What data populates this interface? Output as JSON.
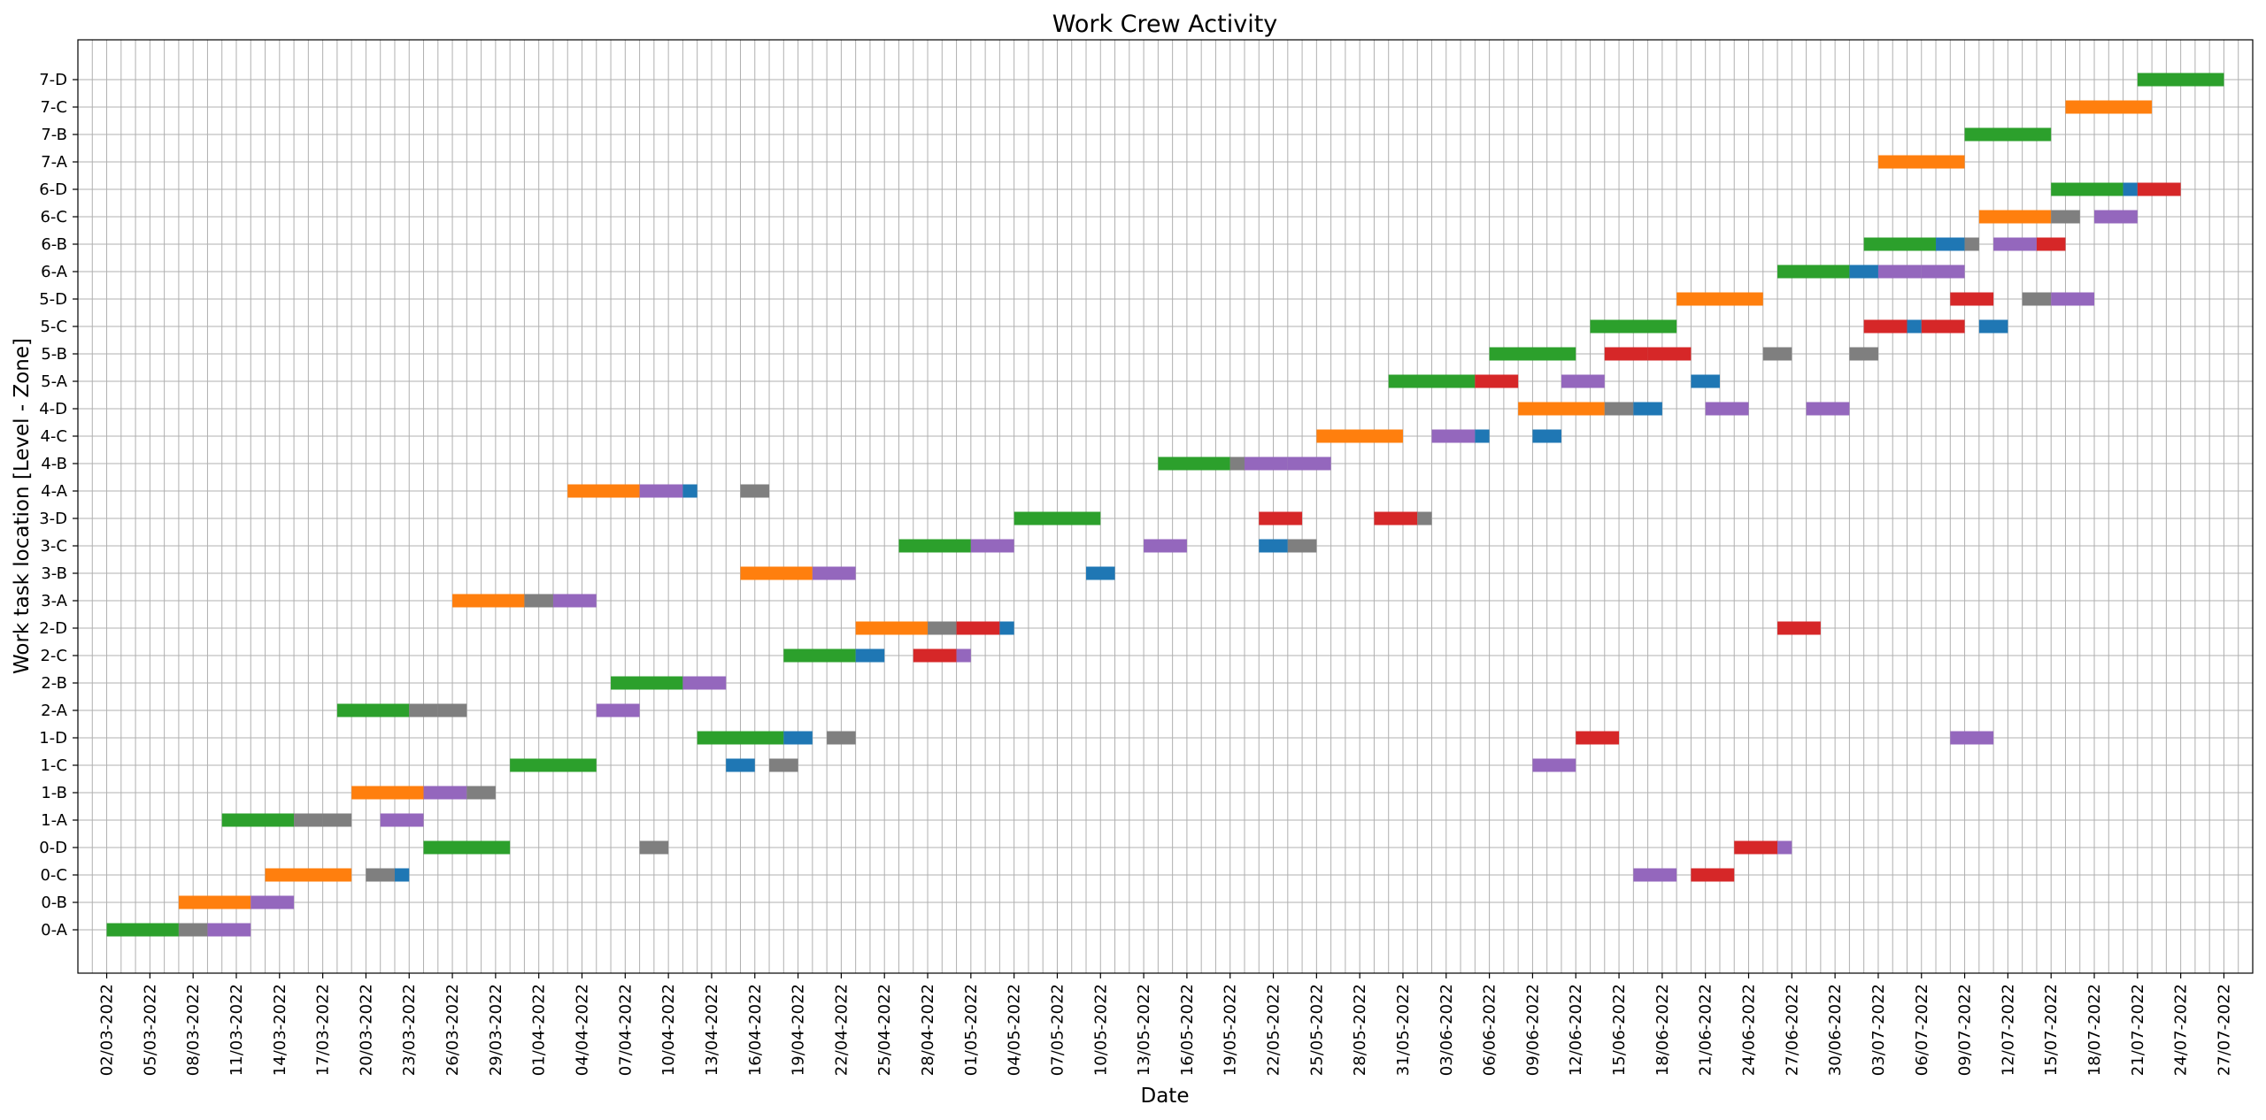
{
  "chart_data": {
    "type": "gantt",
    "title": "Work Crew Activity",
    "xlabel": "Date",
    "ylabel": "Work task location [Level - Zone]",
    "grid": true,
    "x_start": "2022-02-28",
    "x_end": "2022-07-29",
    "x_ticks": [
      "02/03-2022",
      "05/03-2022",
      "08/03-2022",
      "11/03-2022",
      "14/03-2022",
      "17/03-2022",
      "20/03-2022",
      "23/03-2022",
      "26/03-2022",
      "29/03-2022",
      "01/04-2022",
      "04/04-2022",
      "07/04-2022",
      "10/04-2022",
      "13/04-2022",
      "16/04-2022",
      "19/04-2022",
      "22/04-2022",
      "25/04-2022",
      "28/04-2022",
      "01/05-2022",
      "04/05-2022",
      "07/05-2022",
      "10/05-2022",
      "13/05-2022",
      "16/05-2022",
      "19/05-2022",
      "22/05-2022",
      "25/05-2022",
      "28/05-2022",
      "31/05-2022",
      "03/06-2022",
      "06/06-2022",
      "09/06-2022",
      "12/06-2022",
      "15/06-2022",
      "18/06-2022",
      "21/06-2022",
      "24/06-2022",
      "27/06-2022",
      "30/06-2022",
      "03/07-2022",
      "06/07-2022",
      "09/07-2022",
      "12/07-2022",
      "15/07-2022",
      "18/07-2022",
      "21/07-2022",
      "24/07-2022",
      "27/07-2022"
    ],
    "categories": [
      "0-A",
      "0-B",
      "0-C",
      "0-D",
      "1-A",
      "1-B",
      "1-C",
      "1-D",
      "2-A",
      "2-B",
      "2-C",
      "2-D",
      "3-A",
      "3-B",
      "3-C",
      "3-D",
      "4-A",
      "4-B",
      "4-C",
      "4-D",
      "5-A",
      "5-B",
      "5-C",
      "5-D",
      "6-A",
      "6-B",
      "6-C",
      "6-D",
      "7-A",
      "7-B",
      "7-C",
      "7-D"
    ],
    "colors": {
      "green": "#2ca02c",
      "orange": "#ff7f0e",
      "gray": "#7f7f7f",
      "purple": "#9467bd",
      "blue": "#1f77b4",
      "red": "#d62728"
    },
    "tasks": [
      {
        "loc": "0-A",
        "start": "2022-03-02",
        "end": "2022-03-07",
        "color": "green"
      },
      {
        "loc": "0-A",
        "start": "2022-03-07",
        "end": "2022-03-09",
        "color": "gray"
      },
      {
        "loc": "0-A",
        "start": "2022-03-09",
        "end": "2022-03-12",
        "color": "purple"
      },
      {
        "loc": "0-B",
        "start": "2022-03-07",
        "end": "2022-03-12",
        "color": "orange"
      },
      {
        "loc": "0-B",
        "start": "2022-03-12",
        "end": "2022-03-15",
        "color": "purple"
      },
      {
        "loc": "0-C",
        "start": "2022-03-13",
        "end": "2022-03-19",
        "color": "orange"
      },
      {
        "loc": "0-C",
        "start": "2022-03-20",
        "end": "2022-03-22",
        "color": "gray"
      },
      {
        "loc": "0-C",
        "start": "2022-03-22",
        "end": "2022-03-23",
        "color": "blue"
      },
      {
        "loc": "0-D",
        "start": "2022-03-24",
        "end": "2022-03-30",
        "color": "green"
      },
      {
        "loc": "0-D",
        "start": "2022-04-08",
        "end": "2022-04-10",
        "color": "gray"
      },
      {
        "loc": "0-D",
        "start": "2022-06-23",
        "end": "2022-06-26",
        "color": "red"
      },
      {
        "loc": "0-D",
        "start": "2022-06-26",
        "end": "2022-06-27",
        "color": "purple"
      },
      {
        "loc": "0-C",
        "start": "2022-06-16",
        "end": "2022-06-19",
        "color": "purple"
      },
      {
        "loc": "0-C",
        "start": "2022-06-20",
        "end": "2022-06-23",
        "color": "red"
      },
      {
        "loc": "1-A",
        "start": "2022-03-10",
        "end": "2022-03-15",
        "color": "green"
      },
      {
        "loc": "1-A",
        "start": "2022-03-15",
        "end": "2022-03-17",
        "color": "gray"
      },
      {
        "loc": "1-A",
        "start": "2022-03-17",
        "end": "2022-03-19",
        "color": "gray"
      },
      {
        "loc": "1-A",
        "start": "2022-03-21",
        "end": "2022-03-24",
        "color": "purple"
      },
      {
        "loc": "1-B",
        "start": "2022-03-19",
        "end": "2022-03-24",
        "color": "orange"
      },
      {
        "loc": "1-B",
        "start": "2022-03-24",
        "end": "2022-03-27",
        "color": "purple"
      },
      {
        "loc": "1-B",
        "start": "2022-03-27",
        "end": "2022-03-29",
        "color": "gray"
      },
      {
        "loc": "1-C",
        "start": "2022-03-30",
        "end": "2022-04-05",
        "color": "green"
      },
      {
        "loc": "1-C",
        "start": "2022-04-14",
        "end": "2022-04-16",
        "color": "blue"
      },
      {
        "loc": "1-C",
        "start": "2022-04-17",
        "end": "2022-04-19",
        "color": "gray"
      },
      {
        "loc": "1-C",
        "start": "2022-06-09",
        "end": "2022-06-12",
        "color": "purple"
      },
      {
        "loc": "1-D",
        "start": "2022-04-12",
        "end": "2022-04-18",
        "color": "green"
      },
      {
        "loc": "1-D",
        "start": "2022-04-18",
        "end": "2022-04-20",
        "color": "blue"
      },
      {
        "loc": "1-D",
        "start": "2022-04-21",
        "end": "2022-04-23",
        "color": "gray"
      },
      {
        "loc": "1-D",
        "start": "2022-06-12",
        "end": "2022-06-15",
        "color": "red"
      },
      {
        "loc": "1-D",
        "start": "2022-07-08",
        "end": "2022-07-11",
        "color": "purple"
      },
      {
        "loc": "2-A",
        "start": "2022-03-18",
        "end": "2022-03-23",
        "color": "green"
      },
      {
        "loc": "2-A",
        "start": "2022-03-23",
        "end": "2022-03-25",
        "color": "gray"
      },
      {
        "loc": "2-A",
        "start": "2022-03-25",
        "end": "2022-03-27",
        "color": "gray"
      },
      {
        "loc": "2-A",
        "start": "2022-04-05",
        "end": "2022-04-08",
        "color": "purple"
      },
      {
        "loc": "2-B",
        "start": "2022-04-06",
        "end": "2022-04-11",
        "color": "green"
      },
      {
        "loc": "2-B",
        "start": "2022-04-11",
        "end": "2022-04-14",
        "color": "purple"
      },
      {
        "loc": "2-C",
        "start": "2022-04-18",
        "end": "2022-04-23",
        "color": "green"
      },
      {
        "loc": "2-C",
        "start": "2022-04-23",
        "end": "2022-04-25",
        "color": "blue"
      },
      {
        "loc": "2-C",
        "start": "2022-04-27",
        "end": "2022-04-30",
        "color": "red"
      },
      {
        "loc": "2-C",
        "start": "2022-04-30",
        "end": "2022-05-01",
        "color": "purple"
      },
      {
        "loc": "2-D",
        "start": "2022-04-23",
        "end": "2022-04-28",
        "color": "orange"
      },
      {
        "loc": "2-D",
        "start": "2022-04-28",
        "end": "2022-04-30",
        "color": "gray"
      },
      {
        "loc": "2-D",
        "start": "2022-04-30",
        "end": "2022-05-03",
        "color": "red"
      },
      {
        "loc": "2-D",
        "start": "2022-05-03",
        "end": "2022-05-04",
        "color": "blue"
      },
      {
        "loc": "2-D",
        "start": "2022-06-26",
        "end": "2022-06-29",
        "color": "red"
      },
      {
        "loc": "3-A",
        "start": "2022-03-26",
        "end": "2022-03-31",
        "color": "orange"
      },
      {
        "loc": "3-A",
        "start": "2022-03-31",
        "end": "2022-04-02",
        "color": "gray"
      },
      {
        "loc": "3-A",
        "start": "2022-04-02",
        "end": "2022-04-05",
        "color": "purple"
      },
      {
        "loc": "3-B",
        "start": "2022-04-15",
        "end": "2022-04-20",
        "color": "orange"
      },
      {
        "loc": "3-B",
        "start": "2022-04-20",
        "end": "2022-04-23",
        "color": "purple"
      },
      {
        "loc": "3-B",
        "start": "2022-05-09",
        "end": "2022-05-11",
        "color": "blue"
      },
      {
        "loc": "3-C",
        "start": "2022-04-26",
        "end": "2022-05-01",
        "color": "green"
      },
      {
        "loc": "3-C",
        "start": "2022-05-01",
        "end": "2022-05-04",
        "color": "purple"
      },
      {
        "loc": "3-C",
        "start": "2022-05-13",
        "end": "2022-05-16",
        "color": "purple"
      },
      {
        "loc": "3-C",
        "start": "2022-05-21",
        "end": "2022-05-23",
        "color": "blue"
      },
      {
        "loc": "3-C",
        "start": "2022-05-23",
        "end": "2022-05-25",
        "color": "gray"
      },
      {
        "loc": "3-D",
        "start": "2022-05-04",
        "end": "2022-05-10",
        "color": "green"
      },
      {
        "loc": "3-D",
        "start": "2022-05-21",
        "end": "2022-05-24",
        "color": "red"
      },
      {
        "loc": "3-D",
        "start": "2022-05-29",
        "end": "2022-06-01",
        "color": "red"
      },
      {
        "loc": "3-D",
        "start": "2022-06-01",
        "end": "2022-06-02",
        "color": "gray"
      },
      {
        "loc": "4-A",
        "start": "2022-04-03",
        "end": "2022-04-08",
        "color": "orange"
      },
      {
        "loc": "4-A",
        "start": "2022-04-08",
        "end": "2022-04-11",
        "color": "purple"
      },
      {
        "loc": "4-A",
        "start": "2022-04-11",
        "end": "2022-04-12",
        "color": "blue"
      },
      {
        "loc": "4-A",
        "start": "2022-04-15",
        "end": "2022-04-17",
        "color": "gray"
      },
      {
        "loc": "4-B",
        "start": "2022-05-14",
        "end": "2022-05-19",
        "color": "green"
      },
      {
        "loc": "4-B",
        "start": "2022-05-19",
        "end": "2022-05-20",
        "color": "gray"
      },
      {
        "loc": "4-B",
        "start": "2022-05-20",
        "end": "2022-05-23",
        "color": "purple"
      },
      {
        "loc": "4-B",
        "start": "2022-05-23",
        "end": "2022-05-26",
        "color": "purple"
      },
      {
        "loc": "4-C",
        "start": "2022-05-25",
        "end": "2022-05-31",
        "color": "orange"
      },
      {
        "loc": "4-C",
        "start": "2022-06-02",
        "end": "2022-06-05",
        "color": "purple"
      },
      {
        "loc": "4-C",
        "start": "2022-06-05",
        "end": "2022-06-06",
        "color": "blue"
      },
      {
        "loc": "4-C",
        "start": "2022-06-09",
        "end": "2022-06-11",
        "color": "blue"
      },
      {
        "loc": "4-D",
        "start": "2022-06-08",
        "end": "2022-06-14",
        "color": "orange"
      },
      {
        "loc": "4-D",
        "start": "2022-06-14",
        "end": "2022-06-16",
        "color": "gray"
      },
      {
        "loc": "4-D",
        "start": "2022-06-16",
        "end": "2022-06-18",
        "color": "blue"
      },
      {
        "loc": "4-D",
        "start": "2022-06-21",
        "end": "2022-06-24",
        "color": "purple"
      },
      {
        "loc": "4-D",
        "start": "2022-06-28",
        "end": "2022-07-01",
        "color": "purple"
      },
      {
        "loc": "5-A",
        "start": "2022-05-30",
        "end": "2022-06-05",
        "color": "green"
      },
      {
        "loc": "5-A",
        "start": "2022-06-05",
        "end": "2022-06-08",
        "color": "red"
      },
      {
        "loc": "5-A",
        "start": "2022-06-11",
        "end": "2022-06-14",
        "color": "purple"
      },
      {
        "loc": "5-A",
        "start": "2022-06-20",
        "end": "2022-06-22",
        "color": "blue"
      },
      {
        "loc": "5-B",
        "start": "2022-06-06",
        "end": "2022-06-12",
        "color": "green"
      },
      {
        "loc": "5-B",
        "start": "2022-06-14",
        "end": "2022-06-17",
        "color": "red"
      },
      {
        "loc": "5-B",
        "start": "2022-06-17",
        "end": "2022-06-20",
        "color": "red"
      },
      {
        "loc": "5-B",
        "start": "2022-06-25",
        "end": "2022-06-27",
        "color": "gray"
      },
      {
        "loc": "5-B",
        "start": "2022-07-01",
        "end": "2022-07-03",
        "color": "gray"
      },
      {
        "loc": "5-C",
        "start": "2022-06-13",
        "end": "2022-06-19",
        "color": "green"
      },
      {
        "loc": "5-C",
        "start": "2022-07-02",
        "end": "2022-07-05",
        "color": "red"
      },
      {
        "loc": "5-C",
        "start": "2022-07-05",
        "end": "2022-07-06",
        "color": "blue"
      },
      {
        "loc": "5-C",
        "start": "2022-07-06",
        "end": "2022-07-09",
        "color": "red"
      },
      {
        "loc": "5-C",
        "start": "2022-07-10",
        "end": "2022-07-12",
        "color": "blue"
      },
      {
        "loc": "5-D",
        "start": "2022-06-19",
        "end": "2022-06-25",
        "color": "orange"
      },
      {
        "loc": "5-D",
        "start": "2022-07-08",
        "end": "2022-07-11",
        "color": "red"
      },
      {
        "loc": "5-D",
        "start": "2022-07-13",
        "end": "2022-07-15",
        "color": "gray"
      },
      {
        "loc": "5-D",
        "start": "2022-07-15",
        "end": "2022-07-18",
        "color": "purple"
      },
      {
        "loc": "6-A",
        "start": "2022-06-26",
        "end": "2022-07-01",
        "color": "green"
      },
      {
        "loc": "6-A",
        "start": "2022-07-01",
        "end": "2022-07-03",
        "color": "blue"
      },
      {
        "loc": "6-A",
        "start": "2022-07-03",
        "end": "2022-07-06",
        "color": "purple"
      },
      {
        "loc": "6-A",
        "start": "2022-07-06",
        "end": "2022-07-09",
        "color": "purple"
      },
      {
        "loc": "6-B",
        "start": "2022-07-02",
        "end": "2022-07-07",
        "color": "green"
      },
      {
        "loc": "6-B",
        "start": "2022-07-07",
        "end": "2022-07-09",
        "color": "blue"
      },
      {
        "loc": "6-B",
        "start": "2022-07-09",
        "end": "2022-07-10",
        "color": "gray"
      },
      {
        "loc": "6-B",
        "start": "2022-07-11",
        "end": "2022-07-14",
        "color": "purple"
      },
      {
        "loc": "6-B",
        "start": "2022-07-14",
        "end": "2022-07-16",
        "color": "red"
      },
      {
        "loc": "6-C",
        "start": "2022-07-10",
        "end": "2022-07-15",
        "color": "orange"
      },
      {
        "loc": "6-C",
        "start": "2022-07-15",
        "end": "2022-07-17",
        "color": "gray"
      },
      {
        "loc": "6-C",
        "start": "2022-07-18",
        "end": "2022-07-21",
        "color": "purple"
      },
      {
        "loc": "6-D",
        "start": "2022-07-15",
        "end": "2022-07-20",
        "color": "green"
      },
      {
        "loc": "6-D",
        "start": "2022-07-20",
        "end": "2022-07-21",
        "color": "blue"
      },
      {
        "loc": "6-D",
        "start": "2022-07-21",
        "end": "2022-07-24",
        "color": "red"
      },
      {
        "loc": "7-A",
        "start": "2022-07-03",
        "end": "2022-07-09",
        "color": "orange"
      },
      {
        "loc": "7-B",
        "start": "2022-07-09",
        "end": "2022-07-15",
        "color": "green"
      },
      {
        "loc": "7-C",
        "start": "2022-07-16",
        "end": "2022-07-22",
        "color": "orange"
      },
      {
        "loc": "7-D",
        "start": "2022-07-21",
        "end": "2022-07-27",
        "color": "green"
      }
    ]
  }
}
